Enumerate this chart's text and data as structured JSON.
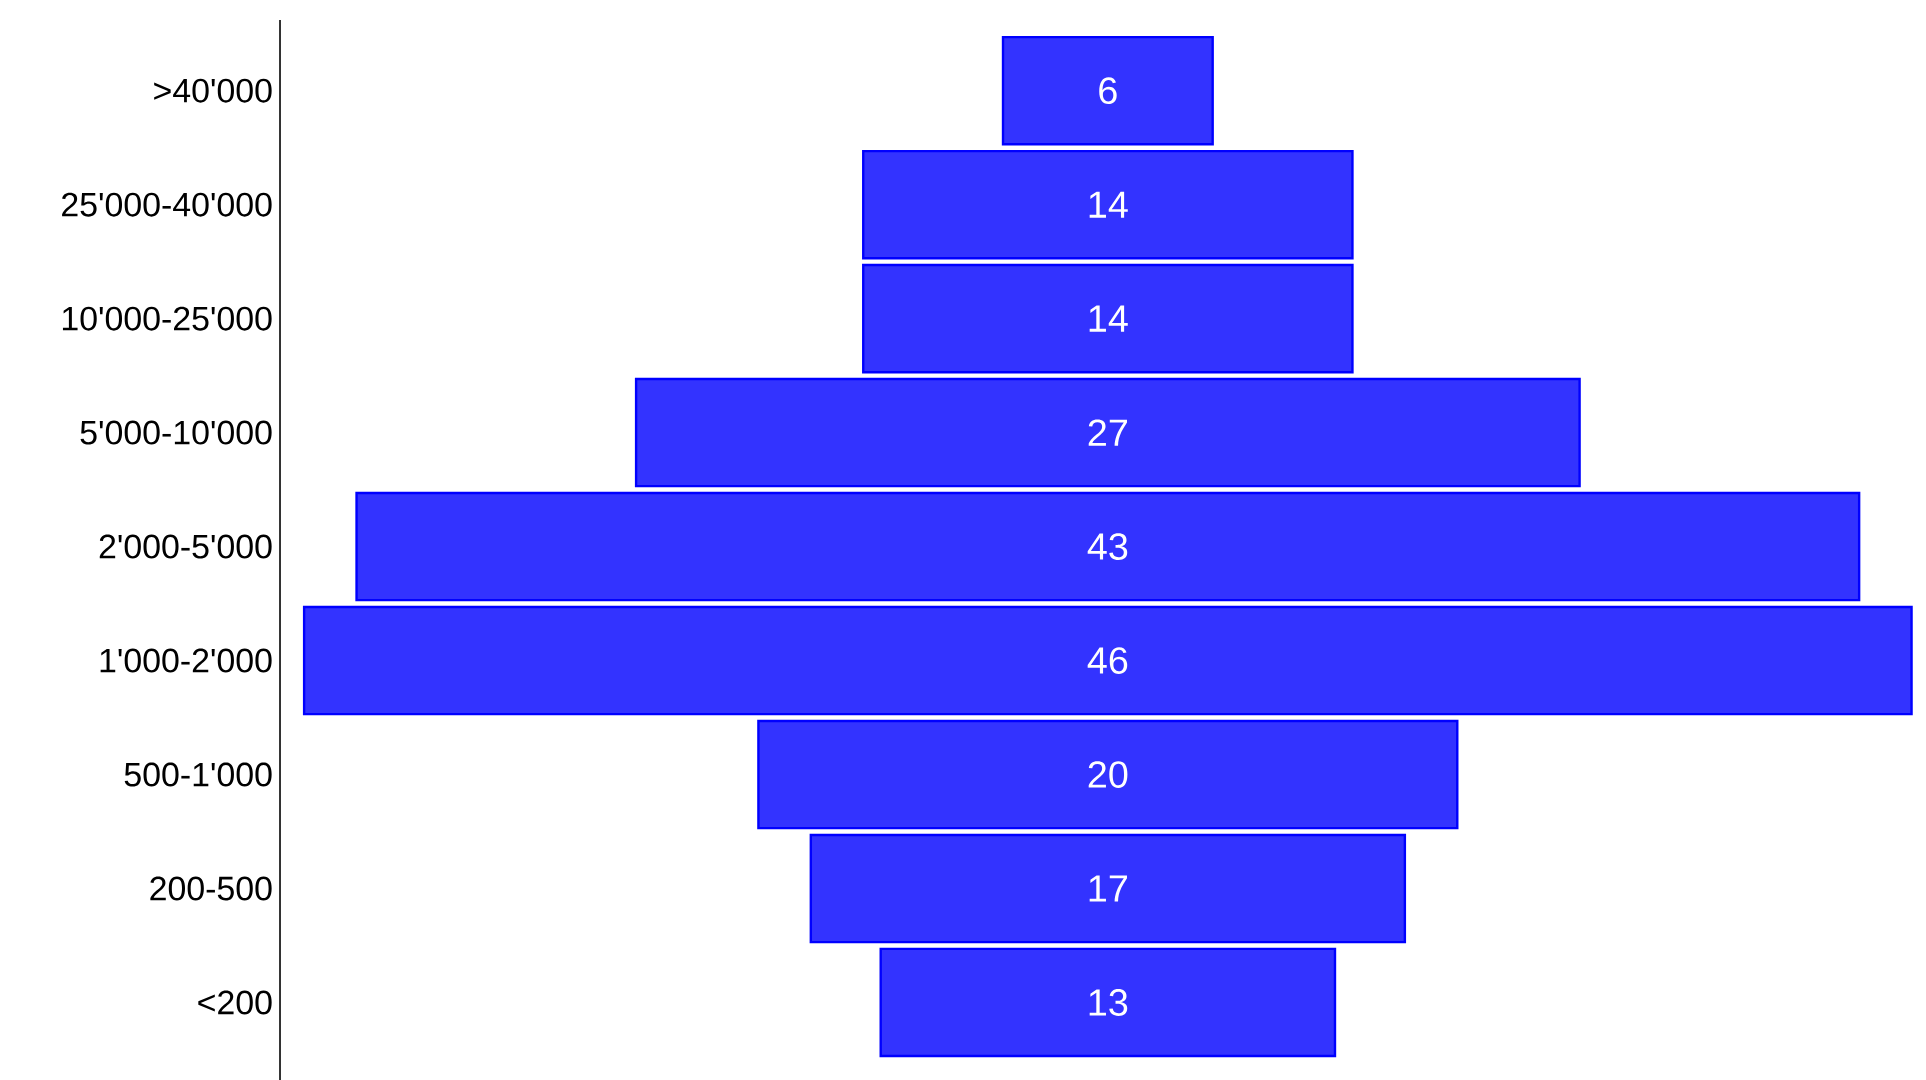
{
  "chart_data": {
    "type": "other",
    "categories": [
      ">40'000",
      "25'000-40'000",
      "10'000-25'000",
      "5'000-10'000",
      "2'000-5'000",
      "1'000-2'000",
      "500-1'000",
      "200-500",
      "<200"
    ],
    "values": [
      6,
      14,
      14,
      27,
      43,
      46,
      20,
      17,
      13
    ],
    "color": "#3333ff",
    "data_labels": true
  }
}
